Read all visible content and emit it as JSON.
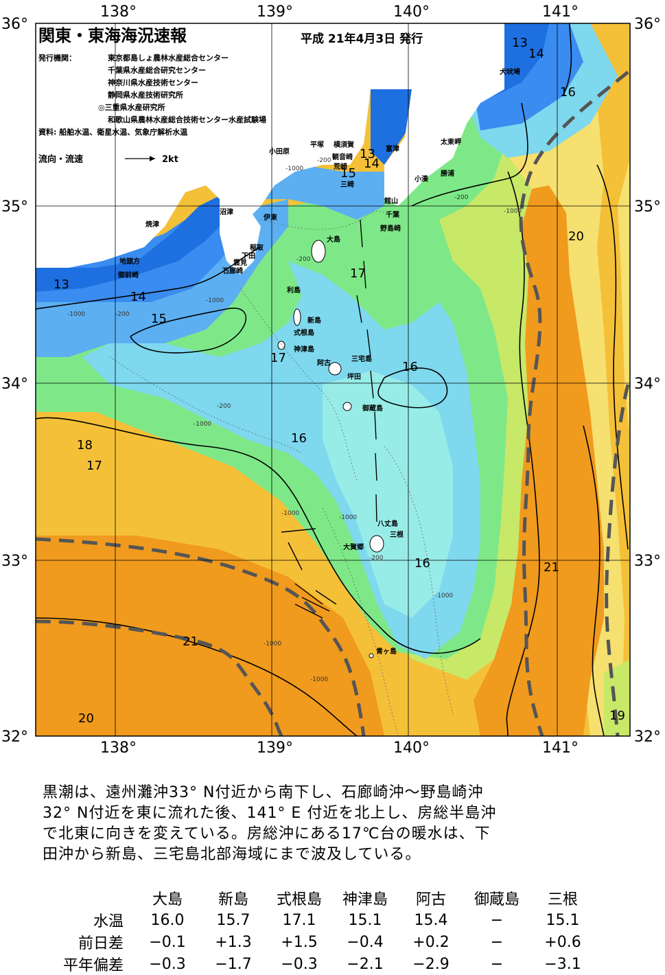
{
  "header": {
    "title": "関東・東海海況速報",
    "issued": "平成 21年4月3日 発行",
    "issuer_label": "発行機関：",
    "issuers": [
      "東京都島しょ農林水産総合センター",
      "千葉県水産総合研究センター",
      "神奈川県水産技術センター",
      "静岡県水産技術研究所",
      "◎三重県水産研究所",
      "和歌山県農林水産総合技術センター水産試験場"
    ],
    "source": "資料: 船舶水温、衛星水温、気象庁解析水温",
    "current_legend": "流向・流速",
    "current_scale": "2kt"
  },
  "map": {
    "lon_ticks": [
      "138°",
      "139°",
      "140°",
      "141°"
    ],
    "lat_ticks": [
      "36°",
      "35°",
      "34°",
      "33°",
      "32°"
    ],
    "colors": {
      "t13": "#1e6fe0",
      "t14": "#3a8cf0",
      "t15": "#5cb0f2",
      "t16": "#7ed8ee",
      "t16b": "#98ece8",
      "t17": "#7ee888",
      "t18": "#c8e868",
      "t19": "#f5e070",
      "t20": "#f4c038",
      "t21": "#f09a1e",
      "land": "#ffffff",
      "kuroshio_axis": "#555555"
    },
    "isotherm_labels": [
      "13",
      "14",
      "15",
      "13",
      "14",
      "16",
      "17",
      "20",
      "13",
      "14",
      "15",
      "17",
      "16",
      "18",
      "17",
      "16",
      "16",
      "21",
      "21",
      "20",
      "19",
      "15"
    ],
    "depth_labels": [
      "-1000",
      "-200"
    ],
    "places": [
      "犬吠埼",
      "太東岬",
      "勝浦",
      "小湊",
      "富津",
      "横須賀",
      "観音崎",
      "荒崎",
      "三崎",
      "館山",
      "千葉",
      "野島崎",
      "平塚",
      "小田原",
      "沼津",
      "伊東",
      "焼津",
      "稲取",
      "下田",
      "雲見",
      "石廊崎",
      "地頭方",
      "御前崎",
      "大島",
      "利島",
      "新島",
      "式根島",
      "神津島",
      "阿古",
      "三宅島",
      "坪田",
      "御蔵島",
      "八丈島",
      "三根",
      "大賀郷",
      "青ヶ島"
    ]
  },
  "comment": [
    "黒潮は、遠州灘沖33° N付近から南下し、石廊崎沖～野島崎沖",
    "32° N付近を東に流れた後、141° E 付近を北上し、房総半島沖",
    "で北東に向きを変えている。房総沖にある17℃台の暖水は、下",
    "田沖から新島、三宅島北部海域にまで波及している。"
  ],
  "stats": {
    "columns": [
      "大島",
      "新島",
      "式根島",
      "神津島",
      "阿古",
      "御蔵島",
      "三根"
    ],
    "rows": [
      {
        "label": "水温",
        "values": [
          "16.0",
          "15.7",
          "17.1",
          "15.1",
          "15.4",
          "−",
          "15.1"
        ]
      },
      {
        "label": "前日差",
        "values": [
          "−0.1",
          "+1.3",
          "+1.5",
          "−0.4",
          "+0.2",
          "−",
          "+0.6"
        ]
      },
      {
        "label": "平年偏差",
        "values": [
          "−0.3",
          "−1.7",
          "−0.3",
          "−2.1",
          "−2.9",
          "−",
          "−3.1"
        ]
      }
    ]
  }
}
